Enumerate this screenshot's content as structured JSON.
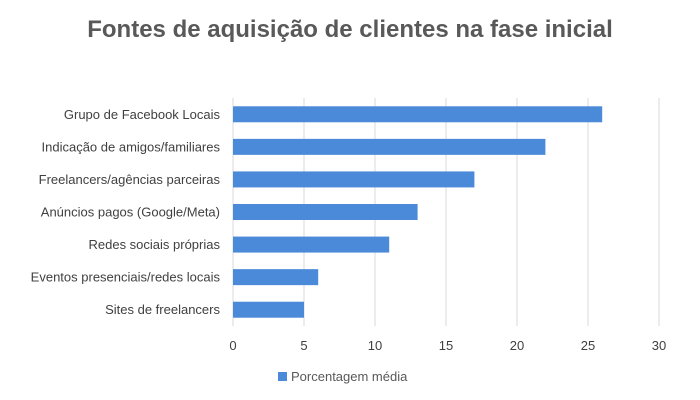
{
  "chart_data": {
    "type": "bar",
    "orientation": "horizontal",
    "title": "Fontes de aquisição de clientes na fase inicial",
    "xlabel": "",
    "ylabel": "",
    "categories": [
      "Grupo de Facebook Locais",
      "Indicação de amigos/familiares",
      "Freelancers/agências parceiras",
      "Anúncios pagos (Google/Meta)",
      "Redes sociais próprias",
      "Eventos presenciais/redes locais",
      "Sites de freelancers"
    ],
    "series": [
      {
        "name": "Porcentagem média",
        "values": [
          26,
          22,
          17,
          13,
          11,
          6,
          5
        ]
      }
    ],
    "xlim": [
      0,
      30
    ],
    "xticks": [
      "0",
      "5",
      "10",
      "15",
      "20",
      "25",
      "30"
    ],
    "grid": true,
    "legend_position": "bottom",
    "bar_color": "#4a8ad8",
    "grid_color": "#d9d9d9",
    "title_color": "#595959",
    "label_color": "#404040"
  }
}
